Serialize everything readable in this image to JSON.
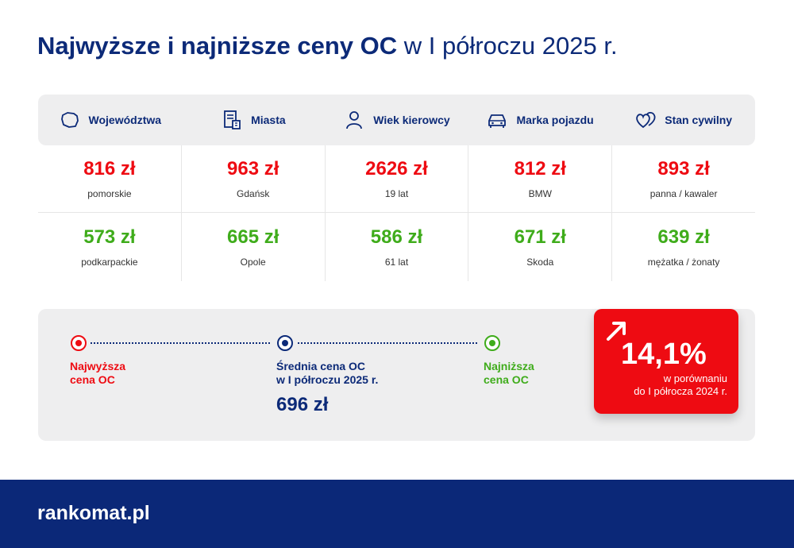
{
  "title": {
    "bold": "Najwyższe i najniższe ceny OC",
    "light": "w I półroczu 2025 r."
  },
  "categories": [
    {
      "label": "Województwa",
      "icon": "map-poland-icon",
      "highest": {
        "value": "816 zł",
        "label": "pomorskie"
      },
      "lowest": {
        "value": "573 zł",
        "label": "podkarpackie"
      }
    },
    {
      "label": "Miasta",
      "icon": "city-document-icon",
      "highest": {
        "value": "963 zł",
        "label": "Gdańsk"
      },
      "lowest": {
        "value": "665 zł",
        "label": "Opole"
      }
    },
    {
      "label": "Wiek kierowcy",
      "icon": "person-icon",
      "highest": {
        "value": "2626 zł",
        "label": "19 lat"
      },
      "lowest": {
        "value": "586 zł",
        "label": "61 lat"
      }
    },
    {
      "label": "Marka pojazdu",
      "icon": "car-icon",
      "highest": {
        "value": "812 zł",
        "label": "BMW"
      },
      "lowest": {
        "value": "671 zł",
        "label": "Skoda"
      }
    },
    {
      "label": "Stan cywilny",
      "icon": "hearts-icon",
      "highest": {
        "value": "893 zł",
        "label": "panna / kawaler"
      },
      "lowest": {
        "value": "639 zł",
        "label": "mężatka / żonaty"
      }
    }
  ],
  "legend": {
    "highest": "Najwyższa\ncena OC",
    "average": "Średnia cena OC\nw I półroczu 2025 r.",
    "average_value": "696 zł",
    "lowest": "Najniższa\ncena OC"
  },
  "change": {
    "value": "14,1%",
    "text": "w porównaniu\ndo I półrocza 2024 r.",
    "icon": "arrow-up-right-icon"
  },
  "footer": {
    "logo": "rankomat.pl"
  },
  "colors": {
    "navy": "#0c2a78",
    "red": "#ee0b12",
    "green": "#3fac1b",
    "panel": "#eeeeef",
    "footer": "#0b2878"
  }
}
